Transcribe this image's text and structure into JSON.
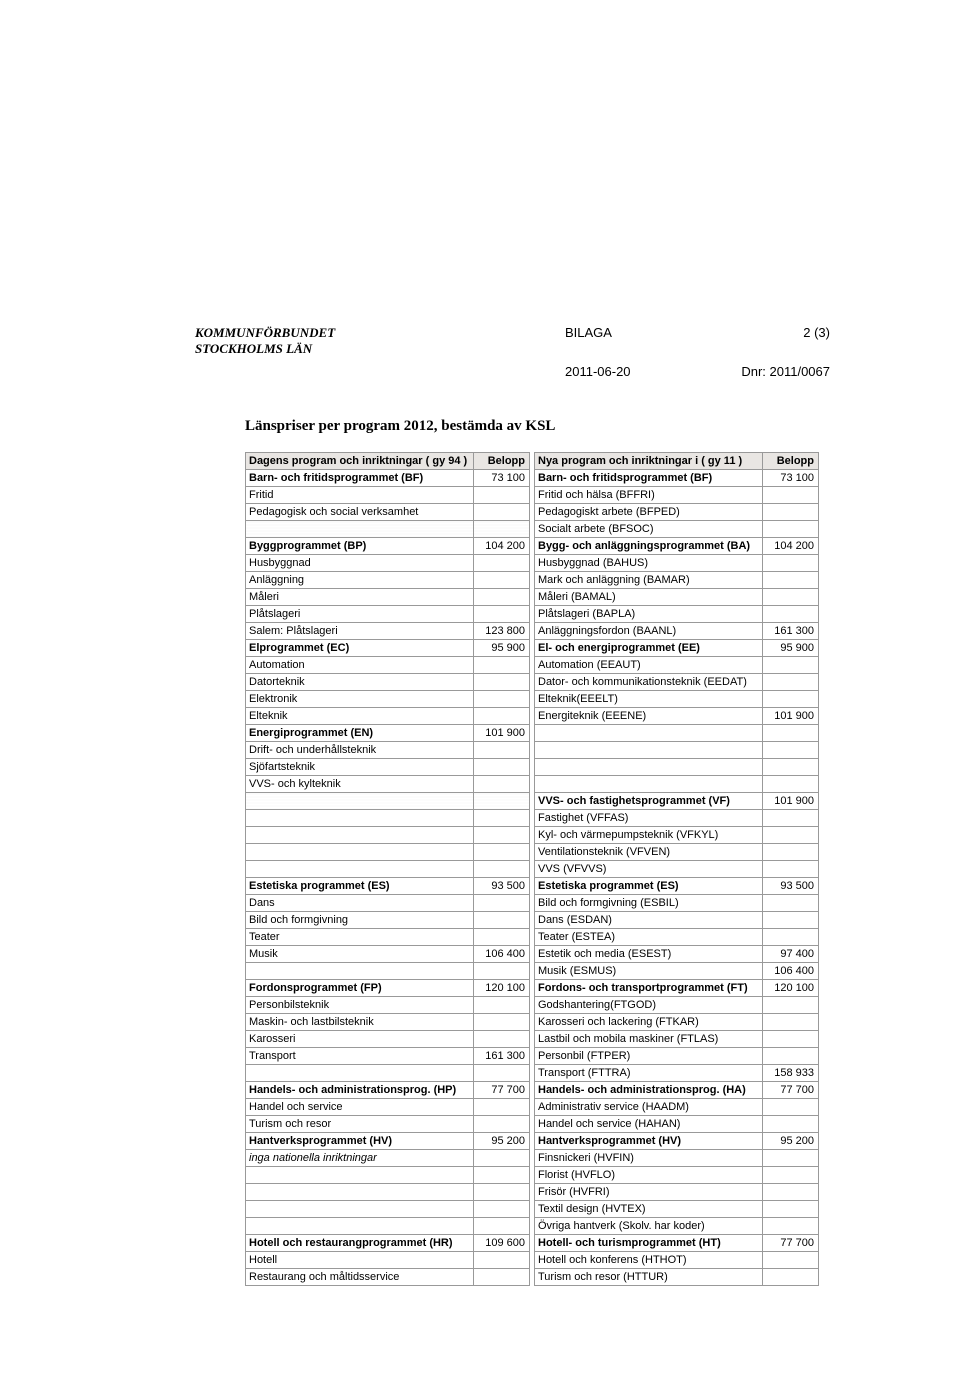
{
  "header": {
    "org_line1": "KOMMUNFÖRBUNDET",
    "org_line2": "STOCKHOLMS LÄN",
    "bilaga": "BILAGA",
    "page_num": "2 (3)",
    "date": "2011-06-20",
    "dnr": "Dnr: 2011/0067"
  },
  "title": "Länspriser per program 2012, bestämda av KSL",
  "left": {
    "header": {
      "label": "Dagens program och inriktningar ( gy 94 )",
      "amount": "Belopp"
    },
    "rows": [
      {
        "label": "Barn- och fritidsprogrammet (BF)",
        "amount": "73 100",
        "bold": true
      },
      {
        "label": "Fritid"
      },
      {
        "label": "Pedagogisk och social verksamhet"
      },
      {
        "label": "",
        "noise": true
      },
      {
        "label": "Byggprogrammet (BP)",
        "amount": "104 200",
        "bold": true
      },
      {
        "label": "Husbyggnad"
      },
      {
        "label": "Anläggning"
      },
      {
        "label": "Måleri"
      },
      {
        "label": "Plåtslageri"
      },
      {
        "label": "Salem: Plåtslageri",
        "amount": "123 800"
      },
      {
        "label": "Elprogrammet (EC)",
        "amount": "95 900",
        "bold": true
      },
      {
        "label": "Automation"
      },
      {
        "label": "Datorteknik"
      },
      {
        "label": "Elektronik"
      },
      {
        "label": "Elteknik"
      },
      {
        "label": "Energiprogrammet (EN)",
        "amount": "101 900",
        "bold": true
      },
      {
        "label": "Drift- och underhållsteknik"
      },
      {
        "label": "Sjöfartsteknik"
      },
      {
        "label": "VVS- och kylteknik"
      },
      {
        "label": "",
        "noise": true
      },
      {
        "label": ""
      },
      {
        "label": ""
      },
      {
        "label": ""
      },
      {
        "label": ""
      },
      {
        "label": "Estetiska programmet (ES)",
        "amount": "93 500",
        "bold": true
      },
      {
        "label": "Dans"
      },
      {
        "label": "Bild och formgivning"
      },
      {
        "label": "Teater"
      },
      {
        "label": "Musik",
        "amount": "106 400"
      },
      {
        "label": ""
      },
      {
        "label": "Fordonsprogrammet (FP)",
        "amount": "120 100",
        "bold": true
      },
      {
        "label": "Personbilsteknik"
      },
      {
        "label": "Maskin- och lastbilsteknik"
      },
      {
        "label": "Karosseri"
      },
      {
        "label": "Transport",
        "amount": "161 300"
      },
      {
        "label": ""
      },
      {
        "label": "Handels- och administrationsprog. (HP)",
        "amount": "77 700",
        "bold": true
      },
      {
        "label": "Handel och service"
      },
      {
        "label": "Turism och resor"
      },
      {
        "label": "Hantverksprogrammet (HV)",
        "amount": "95 200",
        "bold": true
      },
      {
        "label": "inga nationella inriktningar",
        "italic": true
      },
      {
        "label": ""
      },
      {
        "label": ""
      },
      {
        "label": ""
      },
      {
        "label": ""
      },
      {
        "label": "Hotell och restaurangprogrammet (HR)",
        "amount": "109 600",
        "bold": true
      },
      {
        "label": "Hotell"
      },
      {
        "label": "Restaurang och måltidsservice"
      }
    ]
  },
  "right": {
    "header": {
      "label": "Nya program och inriktningar i ( gy 11 )",
      "amount": "Belopp"
    },
    "rows": [
      {
        "label": "Barn- och fritidsprogrammet (BF)",
        "amount": "73 100",
        "bold": true
      },
      {
        "label": "Fritid och hälsa (BFFRI)"
      },
      {
        "label": "Pedagogiskt arbete (BFPED)"
      },
      {
        "label": "Socialt arbete (BFSOC)"
      },
      {
        "label": "Bygg- och anläggningsprogrammet (BA)",
        "amount": "104 200",
        "bold": true
      },
      {
        "label": "Husbyggnad (BAHUS)"
      },
      {
        "label": "Mark och anläggning (BAMAR)"
      },
      {
        "label": "Måleri (BAMAL)"
      },
      {
        "label": "Plåtslageri (BAPLA)"
      },
      {
        "label": "Anläggningsfordon (BAANL)",
        "amount": "161 300"
      },
      {
        "label": "El- och energiprogrammet (EE)",
        "amount": "95 900",
        "bold": true
      },
      {
        "label": "Automation (EEAUT)"
      },
      {
        "label": "Dator- och kommunikationsteknik (EEDAT)"
      },
      {
        "label": "Elteknik(EEELT)"
      },
      {
        "label": "Energiteknik (EEENE)",
        "amount": "101 900"
      },
      {
        "label": ""
      },
      {
        "label": ""
      },
      {
        "label": ""
      },
      {
        "label": ""
      },
      {
        "label": "VVS- och fastighetsprogrammet (VF)",
        "amount": "101 900",
        "bold": true
      },
      {
        "label": "Fastighet (VFFAS)"
      },
      {
        "label": "Kyl- och värmepumpsteknik (VFKYL)"
      },
      {
        "label": "Ventilationsteknik (VFVEN)"
      },
      {
        "label": "VVS (VFVVS)"
      },
      {
        "label": "Estetiska programmet (ES)",
        "amount": "93 500",
        "bold": true
      },
      {
        "label": "Bild och formgivning (ESBIL)"
      },
      {
        "label": "Dans (ESDAN)"
      },
      {
        "label": "Teater (ESTEA)"
      },
      {
        "label": "Estetik och media (ESEST)",
        "amount": "97 400"
      },
      {
        "label": "Musik (ESMUS)",
        "amount": "106 400"
      },
      {
        "label": "Fordons- och transportprogrammet (FT)",
        "amount": "120 100",
        "bold": true
      },
      {
        "label": "Godshantering(FTGOD)"
      },
      {
        "label": "Karosseri och lackering (FTKAR)"
      },
      {
        "label": "Lastbil och mobila maskiner (FTLAS)"
      },
      {
        "label": "Personbil (FTPER)"
      },
      {
        "label": "Transport (FTTRA)",
        "amount": "158 933"
      },
      {
        "label": "Handels- och administrationsprog. (HA)",
        "amount": "77 700",
        "bold": true
      },
      {
        "label": "Administrativ service (HAADM)"
      },
      {
        "label": "Handel och service (HAHAN)"
      },
      {
        "label": "Hantverksprogrammet (HV)",
        "amount": "95 200",
        "bold": true
      },
      {
        "label": "Finsnickeri (HVFIN)"
      },
      {
        "label": "Florist (HVFLO)"
      },
      {
        "label": "Frisör (HVFRI)"
      },
      {
        "label": "Textil design (HVTEX)"
      },
      {
        "label": "Övriga hantverk (Skolv. har koder)"
      },
      {
        "label": "Hotell- och turismprogrammet (HT)",
        "amount": "77 700",
        "bold": true
      },
      {
        "label": "Hotell och konferens (HTHOT)"
      },
      {
        "label": "Turism och resor (HTTUR)"
      }
    ]
  }
}
